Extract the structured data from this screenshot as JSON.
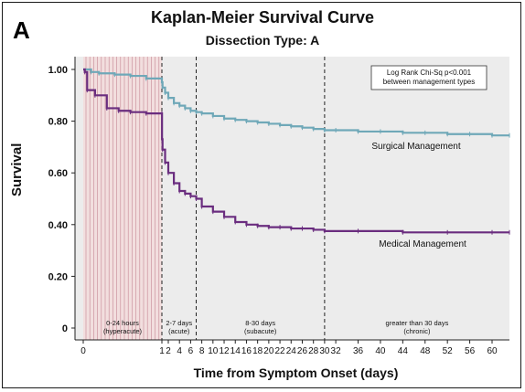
{
  "panel_letter": "A",
  "chart_data": {
    "type": "line",
    "title": "Kaplan-Meier Survival Curve",
    "subtitle": "Dissection Type:  A",
    "xlabel": "Time from Symptom Onset (days)",
    "ylabel": "Survival",
    "ylim": [
      0,
      1.05
    ],
    "yticks": [
      "0",
      "0.20",
      "0.40",
      "0.60",
      "0.80",
      "1.00"
    ],
    "yvalues": [
      0,
      0.2,
      0.4,
      0.6,
      0.8,
      1.0
    ],
    "xticks": [
      "0",
      "1",
      "2",
      "4",
      "6",
      "8",
      "10",
      "12",
      "14",
      "16",
      "18",
      "20",
      "22",
      "24",
      "26",
      "28",
      "30",
      "32",
      "36",
      "40",
      "44",
      "48",
      "52",
      "56",
      "60"
    ],
    "grid": false,
    "annotation": [
      "Log Rank Chi-Sq p<0.001",
      "between management types"
    ],
    "phases": [
      {
        "label": [
          "0-24 hours",
          "(hyperacute)"
        ],
        "from": 0,
        "to": 1
      },
      {
        "label": [
          "2-7 days",
          "(acute)"
        ],
        "from": 1,
        "to": 7
      },
      {
        "label": [
          "8-30 days",
          "(subacute)"
        ],
        "from": 7,
        "to": 30
      },
      {
        "label": [
          "greater than 30 days",
          "(chronic)"
        ],
        "from": 30,
        "to": 63
      }
    ],
    "series": [
      {
        "name": "Surgical Management",
        "color": "#6fa8b8",
        "points": [
          [
            0,
            1.0
          ],
          [
            0.1,
            0.99
          ],
          [
            0.2,
            0.985
          ],
          [
            0.4,
            0.98
          ],
          [
            0.6,
            0.975
          ],
          [
            0.8,
            0.965
          ],
          [
            1.0,
            0.95
          ],
          [
            1.1,
            0.93
          ],
          [
            1.5,
            0.91
          ],
          [
            2,
            0.89
          ],
          [
            3,
            0.87
          ],
          [
            4,
            0.86
          ],
          [
            5,
            0.85
          ],
          [
            6,
            0.84
          ],
          [
            7,
            0.835
          ],
          [
            8,
            0.83
          ],
          [
            10,
            0.82
          ],
          [
            12,
            0.81
          ],
          [
            14,
            0.805
          ],
          [
            16,
            0.8
          ],
          [
            18,
            0.795
          ],
          [
            20,
            0.79
          ],
          [
            22,
            0.785
          ],
          [
            24,
            0.78
          ],
          [
            26,
            0.775
          ],
          [
            28,
            0.77
          ],
          [
            30,
            0.765
          ],
          [
            32,
            0.765
          ],
          [
            36,
            0.76
          ],
          [
            40,
            0.76
          ],
          [
            44,
            0.755
          ],
          [
            48,
            0.755
          ],
          [
            52,
            0.75
          ],
          [
            56,
            0.75
          ],
          [
            60,
            0.745
          ],
          [
            63,
            0.745
          ]
        ]
      },
      {
        "name": "Medical Management",
        "color": "#6a2d7f",
        "points": [
          [
            0,
            1.0
          ],
          [
            0.02,
            0.99
          ],
          [
            0.05,
            0.92
          ],
          [
            0.15,
            0.9
          ],
          [
            0.3,
            0.85
          ],
          [
            0.45,
            0.84
          ],
          [
            0.6,
            0.835
          ],
          [
            0.8,
            0.83
          ],
          [
            1.0,
            0.83
          ],
          [
            1.02,
            0.73
          ],
          [
            1.1,
            0.69
          ],
          [
            1.5,
            0.64
          ],
          [
            2,
            0.6
          ],
          [
            3,
            0.56
          ],
          [
            4,
            0.53
          ],
          [
            5,
            0.52
          ],
          [
            6,
            0.51
          ],
          [
            7,
            0.5
          ],
          [
            8,
            0.47
          ],
          [
            10,
            0.45
          ],
          [
            12,
            0.43
          ],
          [
            14,
            0.41
          ],
          [
            16,
            0.4
          ],
          [
            18,
            0.395
          ],
          [
            20,
            0.39
          ],
          [
            22,
            0.39
          ],
          [
            24,
            0.385
          ],
          [
            26,
            0.385
          ],
          [
            28,
            0.38
          ],
          [
            30,
            0.375
          ],
          [
            36,
            0.375
          ],
          [
            44,
            0.37
          ],
          [
            52,
            0.37
          ],
          [
            60,
            0.37
          ],
          [
            63,
            0.37
          ]
        ]
      }
    ]
  }
}
